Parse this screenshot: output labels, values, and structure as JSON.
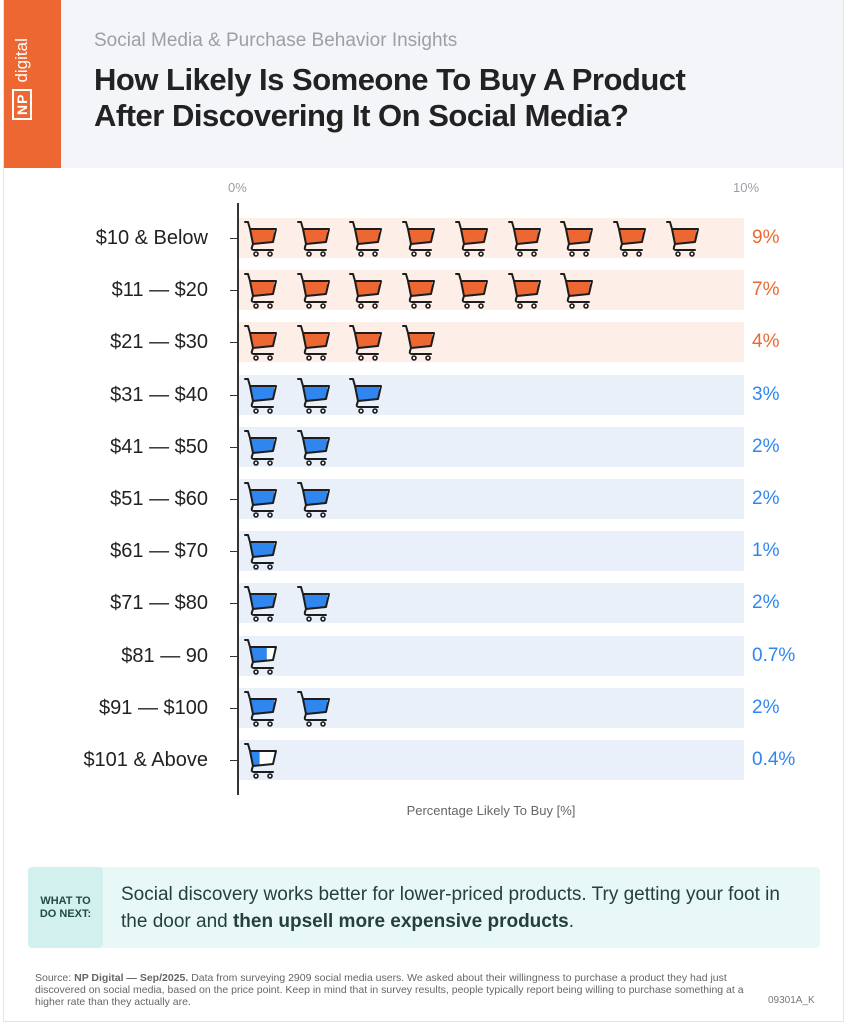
{
  "brand": {
    "logo_text": "digital",
    "logo_box": "NP",
    "color": "#ec6732"
  },
  "header": {
    "subtitle": "Social Media & Purchase Behavior Insights",
    "title_line1": "How Likely Is Someone To Buy A Product",
    "title_line2": "After Discovering It On Social Media?"
  },
  "chart_data": {
    "type": "bar",
    "subtype": "pictograph",
    "unit_per_icon": "1%",
    "icon": "shopping-cart-icon",
    "categories": [
      "$10 & Below",
      "$11 — $20",
      "$21 — $30",
      "$31 — $40",
      "$41 — $50",
      "$51 — $60",
      "$61 — $70",
      "$71 — $80",
      "$81 — 90",
      "$91 — $100",
      "$101 & Above"
    ],
    "values": [
      9,
      7,
      4,
      3,
      2,
      2,
      1,
      2,
      0.7,
      2,
      0.4
    ],
    "value_labels": [
      "9%",
      "7%",
      "4%",
      "3%",
      "2%",
      "2%",
      "1%",
      "2%",
      "0.7%",
      "2%",
      "0.4%"
    ],
    "highlight_colors": [
      "#ec6732",
      "#ec6732",
      "#ec6732",
      "#2f86ee",
      "#2f86ee",
      "#2f86ee",
      "#2f86ee",
      "#2f86ee",
      "#2f86ee",
      "#2f86ee",
      "#2f86ee"
    ],
    "xlim": [
      0,
      10
    ],
    "xticks": [
      "0%",
      "10%"
    ],
    "xlabel": "Percentage Likely To Buy [%]",
    "grid": false
  },
  "colors": {
    "orange": "#ec6732",
    "orange_bg": "#fdeee8",
    "blue": "#2f86ee",
    "blue_bg": "#e9f0f9"
  },
  "tip": {
    "badge": "WHAT TO DO NEXT:",
    "text_plain": "Social discovery works better for lower-priced products. Try getting your foot in the door and ",
    "text_bold": "then upsell more expensive products",
    "text_end": "."
  },
  "footer": {
    "source_label": "Source: ",
    "source_bold": "NP Digital — Sep/2025.",
    "source_text": " Data from surveying 2909 social media users. We asked about their willingness to purchase a product they had just discovered on social media, based on the price point. Keep in mind that in survey results, people typically report being willing to purchase something at a higher rate than they actually are.",
    "code": "09301A_K"
  }
}
